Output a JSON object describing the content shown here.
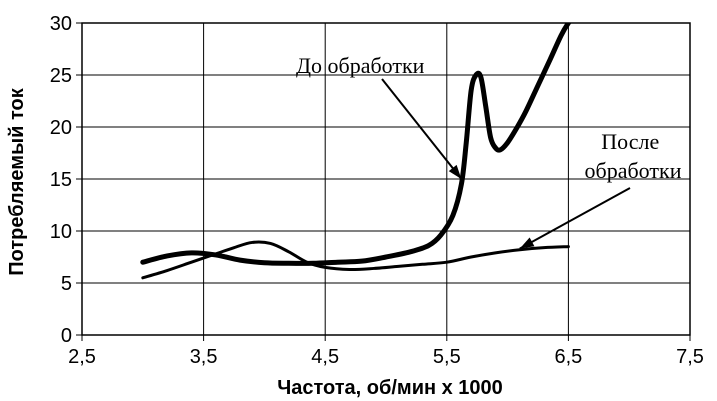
{
  "chart_data": {
    "type": "line",
    "title": "",
    "xlabel": "Частота, об/мин х 1000",
    "ylabel": "Потребляемый ток",
    "xlim": [
      2.5,
      7.5
    ],
    "ylim": [
      0,
      30
    ],
    "xticks": [
      2.5,
      3.5,
      4.5,
      5.5,
      6.5,
      7.5
    ],
    "xtick_labels": [
      "2,5",
      "3,5",
      "4,5",
      "5,5",
      "6,5",
      "7,5"
    ],
    "yticks": [
      0,
      5,
      10,
      15,
      20,
      25,
      30
    ],
    "ytick_labels": [
      "0",
      "5",
      "10",
      "15",
      "20",
      "25",
      "30"
    ],
    "grid": true,
    "series": [
      {
        "color": "#000000",
        "x": [
          3.0,
          3.2,
          3.4,
          3.6,
          3.8,
          4.0,
          4.2,
          4.4,
          4.6,
          4.8,
          5.0,
          5.2,
          5.35,
          5.45,
          5.55,
          5.62,
          5.66,
          5.7,
          5.74,
          5.78,
          5.82,
          5.86,
          5.9,
          5.94,
          6.0,
          6.08,
          6.15,
          6.25,
          6.35,
          6.44,
          6.5,
          6.57
        ],
        "y": [
          7.0,
          7.6,
          7.9,
          7.7,
          7.2,
          6.95,
          6.9,
          6.9,
          7.0,
          7.1,
          7.5,
          8.0,
          8.6,
          9.6,
          11.5,
          14.5,
          18.5,
          23.5,
          25.0,
          24.8,
          22.0,
          19.0,
          18.0,
          17.8,
          18.5,
          20.0,
          21.5,
          24.0,
          26.5,
          28.8,
          30.0,
          31.0
        ]
      },
      {
        "color": "#000000",
        "x": [
          3.0,
          3.2,
          3.4,
          3.6,
          3.75,
          3.9,
          4.05,
          4.2,
          4.35,
          4.5,
          4.7,
          4.9,
          5.1,
          5.3,
          5.5,
          5.7,
          5.9,
          6.1,
          6.3,
          6.5
        ],
        "y": [
          5.5,
          6.2,
          7.0,
          7.8,
          8.4,
          8.9,
          8.8,
          8.0,
          7.0,
          6.5,
          6.3,
          6.4,
          6.6,
          6.8,
          7.0,
          7.5,
          7.9,
          8.2,
          8.4,
          8.5
        ]
      }
    ],
    "annotations": [
      {
        "text": "До обработки",
        "arrow_to": [
          5.62,
          15.0
        ]
      },
      {
        "text": "После\nобработки",
        "arrow_to": [
          6.1,
          8.3
        ]
      }
    ]
  }
}
